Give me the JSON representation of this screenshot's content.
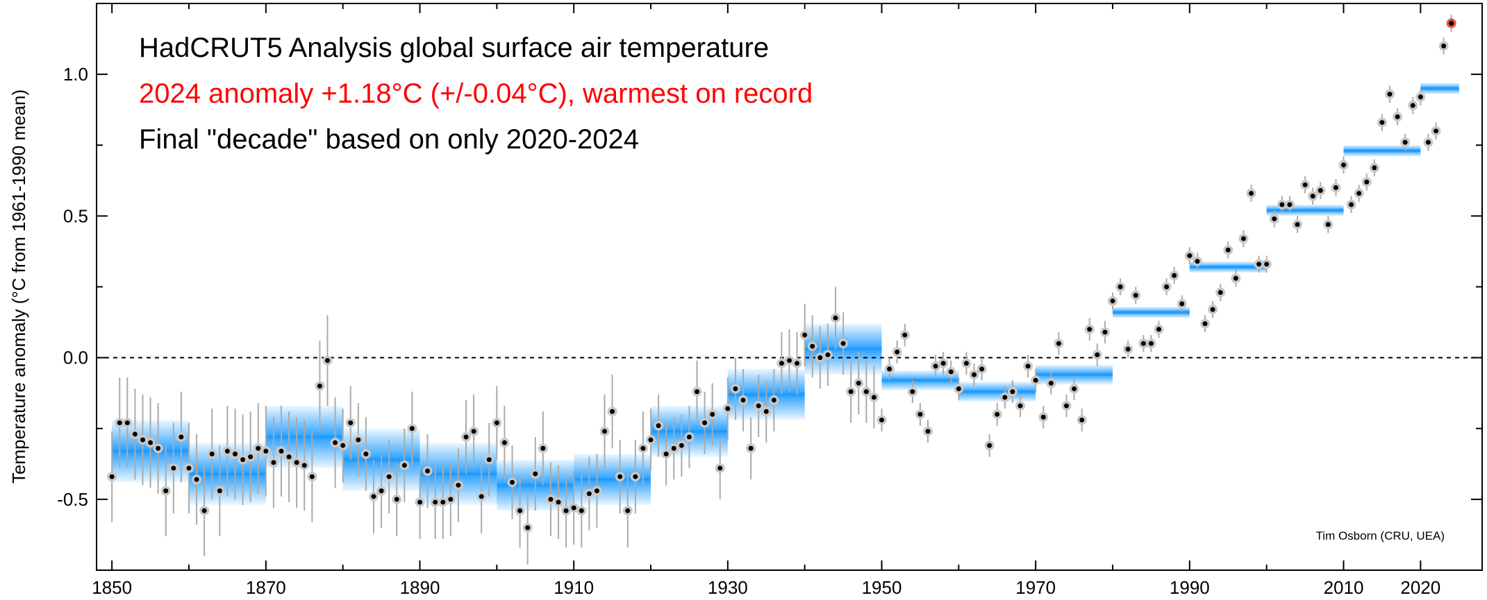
{
  "chart_data": {
    "type": "scatter",
    "title_lines": [
      {
        "text": "HadCRUT5 Analysis global surface air temperature",
        "color": "#000000"
      },
      {
        "text": "2024 anomaly +1.18°C (+/-0.04°C), warmest on record",
        "color": "#ff0000"
      },
      {
        "text": "Final \"decade\" based on only 2020-2024",
        "color": "#000000"
      }
    ],
    "ylabel": "Temperature anomaly (°C from 1961-1990 mean)",
    "xlabel": "",
    "credit": "Tim Osborn (CRU, UEA)",
    "xlim": [
      1848,
      2028
    ],
    "ylim": [
      -0.75,
      1.25
    ],
    "x_ticks": [
      1850,
      1870,
      1890,
      1910,
      1930,
      1950,
      1970,
      1990,
      2010,
      2020
    ],
    "y_ticks": [
      {
        "value": 1.0,
        "label": "1.0"
      },
      {
        "value": 0.5,
        "label": "0.5"
      },
      {
        "value": 0.0,
        "label": "0.0"
      },
      {
        "value": -0.5,
        "label": "-0.5"
      }
    ],
    "zero_line": true,
    "colors": {
      "decade_bar": "#1e9bff",
      "point": "#000000",
      "point_halo": "#c8c8c8",
      "error_bar": "#aaaaaa",
      "highlight": "#e8553c"
    },
    "highlight_year": 2024,
    "series": [
      {
        "name": "",
        "x": [
          1850,
          1851,
          1852,
          1853,
          1854,
          1855,
          1856,
          1857,
          1858,
          1859,
          1860,
          1861,
          1862,
          1863,
          1864,
          1865,
          1866,
          1867,
          1868,
          1869,
          1870,
          1871,
          1872,
          1873,
          1874,
          1875,
          1876,
          1877,
          1878,
          1879,
          1880,
          1881,
          1882,
          1883,
          1884,
          1885,
          1886,
          1887,
          1888,
          1889,
          1890,
          1891,
          1892,
          1893,
          1894,
          1895,
          1896,
          1897,
          1898,
          1899,
          1900,
          1901,
          1902,
          1903,
          1904,
          1905,
          1906,
          1907,
          1908,
          1909,
          1910,
          1911,
          1912,
          1913,
          1914,
          1915,
          1916,
          1917,
          1918,
          1919,
          1920,
          1921,
          1922,
          1923,
          1924,
          1925,
          1926,
          1927,
          1928,
          1929,
          1930,
          1931,
          1932,
          1933,
          1934,
          1935,
          1936,
          1937,
          1938,
          1939,
          1940,
          1941,
          1942,
          1943,
          1944,
          1945,
          1946,
          1947,
          1948,
          1949,
          1950,
          1951,
          1952,
          1953,
          1954,
          1955,
          1956,
          1957,
          1958,
          1959,
          1960,
          1961,
          1962,
          1963,
          1964,
          1965,
          1966,
          1967,
          1968,
          1969,
          1970,
          1971,
          1972,
          1973,
          1974,
          1975,
          1976,
          1977,
          1978,
          1979,
          1980,
          1981,
          1982,
          1983,
          1984,
          1985,
          1986,
          1987,
          1988,
          1989,
          1990,
          1991,
          1992,
          1993,
          1994,
          1995,
          1996,
          1997,
          1998,
          1999,
          2000,
          2001,
          2002,
          2003,
          2004,
          2005,
          2006,
          2007,
          2008,
          2009,
          2010,
          2011,
          2012,
          2013,
          2014,
          2015,
          2016,
          2017,
          2018,
          2019,
          2020,
          2021,
          2022,
          2023,
          2024
        ],
        "y": [
          -0.42,
          -0.23,
          -0.23,
          -0.27,
          -0.29,
          -0.3,
          -0.32,
          -0.47,
          -0.39,
          -0.28,
          -0.39,
          -0.43,
          -0.54,
          -0.34,
          -0.47,
          -0.33,
          -0.34,
          -0.36,
          -0.35,
          -0.32,
          -0.33,
          -0.37,
          -0.33,
          -0.35,
          -0.37,
          -0.38,
          -0.42,
          -0.1,
          -0.01,
          -0.3,
          -0.31,
          -0.23,
          -0.29,
          -0.34,
          -0.49,
          -0.47,
          -0.42,
          -0.5,
          -0.38,
          -0.25,
          -0.51,
          -0.4,
          -0.51,
          -0.51,
          -0.5,
          -0.45,
          -0.28,
          -0.26,
          -0.49,
          -0.36,
          -0.23,
          -0.3,
          -0.44,
          -0.54,
          -0.6,
          -0.41,
          -0.32,
          -0.5,
          -0.51,
          -0.54,
          -0.53,
          -0.54,
          -0.48,
          -0.47,
          -0.26,
          -0.19,
          -0.42,
          -0.54,
          -0.42,
          -0.32,
          -0.29,
          -0.24,
          -0.34,
          -0.32,
          -0.31,
          -0.28,
          -0.12,
          -0.23,
          -0.2,
          -0.39,
          -0.18,
          -0.11,
          -0.15,
          -0.32,
          -0.17,
          -0.19,
          -0.15,
          -0.02,
          -0.01,
          -0.02,
          0.08,
          0.04,
          0.0,
          0.01,
          0.14,
          0.05,
          -0.12,
          -0.09,
          -0.12,
          -0.14,
          -0.22,
          -0.04,
          0.02,
          0.08,
          -0.12,
          -0.2,
          -0.26,
          -0.03,
          -0.02,
          -0.05,
          -0.11,
          -0.02,
          -0.06,
          -0.04,
          -0.31,
          -0.2,
          -0.14,
          -0.12,
          -0.17,
          -0.03,
          -0.08,
          -0.21,
          -0.09,
          0.05,
          -0.17,
          -0.11,
          -0.22,
          0.1,
          0.01,
          0.09,
          0.2,
          0.25,
          0.03,
          0.22,
          0.05,
          0.05,
          0.1,
          0.25,
          0.29,
          0.19,
          0.36,
          0.34,
          0.12,
          0.17,
          0.23,
          0.38,
          0.28,
          0.42,
          0.58,
          0.33,
          0.33,
          0.49,
          0.54,
          0.54,
          0.47,
          0.61,
          0.57,
          0.59,
          0.47,
          0.6,
          0.68,
          0.54,
          0.58,
          0.62,
          0.67,
          0.83,
          0.93,
          0.85,
          0.76,
          0.89,
          0.92,
          0.76,
          0.8,
          1.1,
          1.18
        ]
      }
    ],
    "decades": [
      {
        "start": 1850,
        "end": 1860,
        "value": -0.33
      },
      {
        "start": 1860,
        "end": 1870,
        "value": -0.41
      },
      {
        "start": 1870,
        "end": 1880,
        "value": -0.28
      },
      {
        "start": 1880,
        "end": 1890,
        "value": -0.36
      },
      {
        "start": 1890,
        "end": 1900,
        "value": -0.41
      },
      {
        "start": 1900,
        "end": 1910,
        "value": -0.45
      },
      {
        "start": 1910,
        "end": 1920,
        "value": -0.43
      },
      {
        "start": 1920,
        "end": 1930,
        "value": -0.26
      },
      {
        "start": 1930,
        "end": 1940,
        "value": -0.13
      },
      {
        "start": 1940,
        "end": 1950,
        "value": 0.03
      },
      {
        "start": 1950,
        "end": 1960,
        "value": -0.08
      },
      {
        "start": 1960,
        "end": 1970,
        "value": -0.12
      },
      {
        "start": 1970,
        "end": 1980,
        "value": -0.06
      },
      {
        "start": 1980,
        "end": 1990,
        "value": 0.16
      },
      {
        "start": 1990,
        "end": 2000,
        "value": 0.32
      },
      {
        "start": 2000,
        "end": 2010,
        "value": 0.52
      },
      {
        "start": 2010,
        "end": 2020,
        "value": 0.73
      },
      {
        "start": 2020,
        "end": 2025,
        "value": 0.95
      }
    ]
  }
}
